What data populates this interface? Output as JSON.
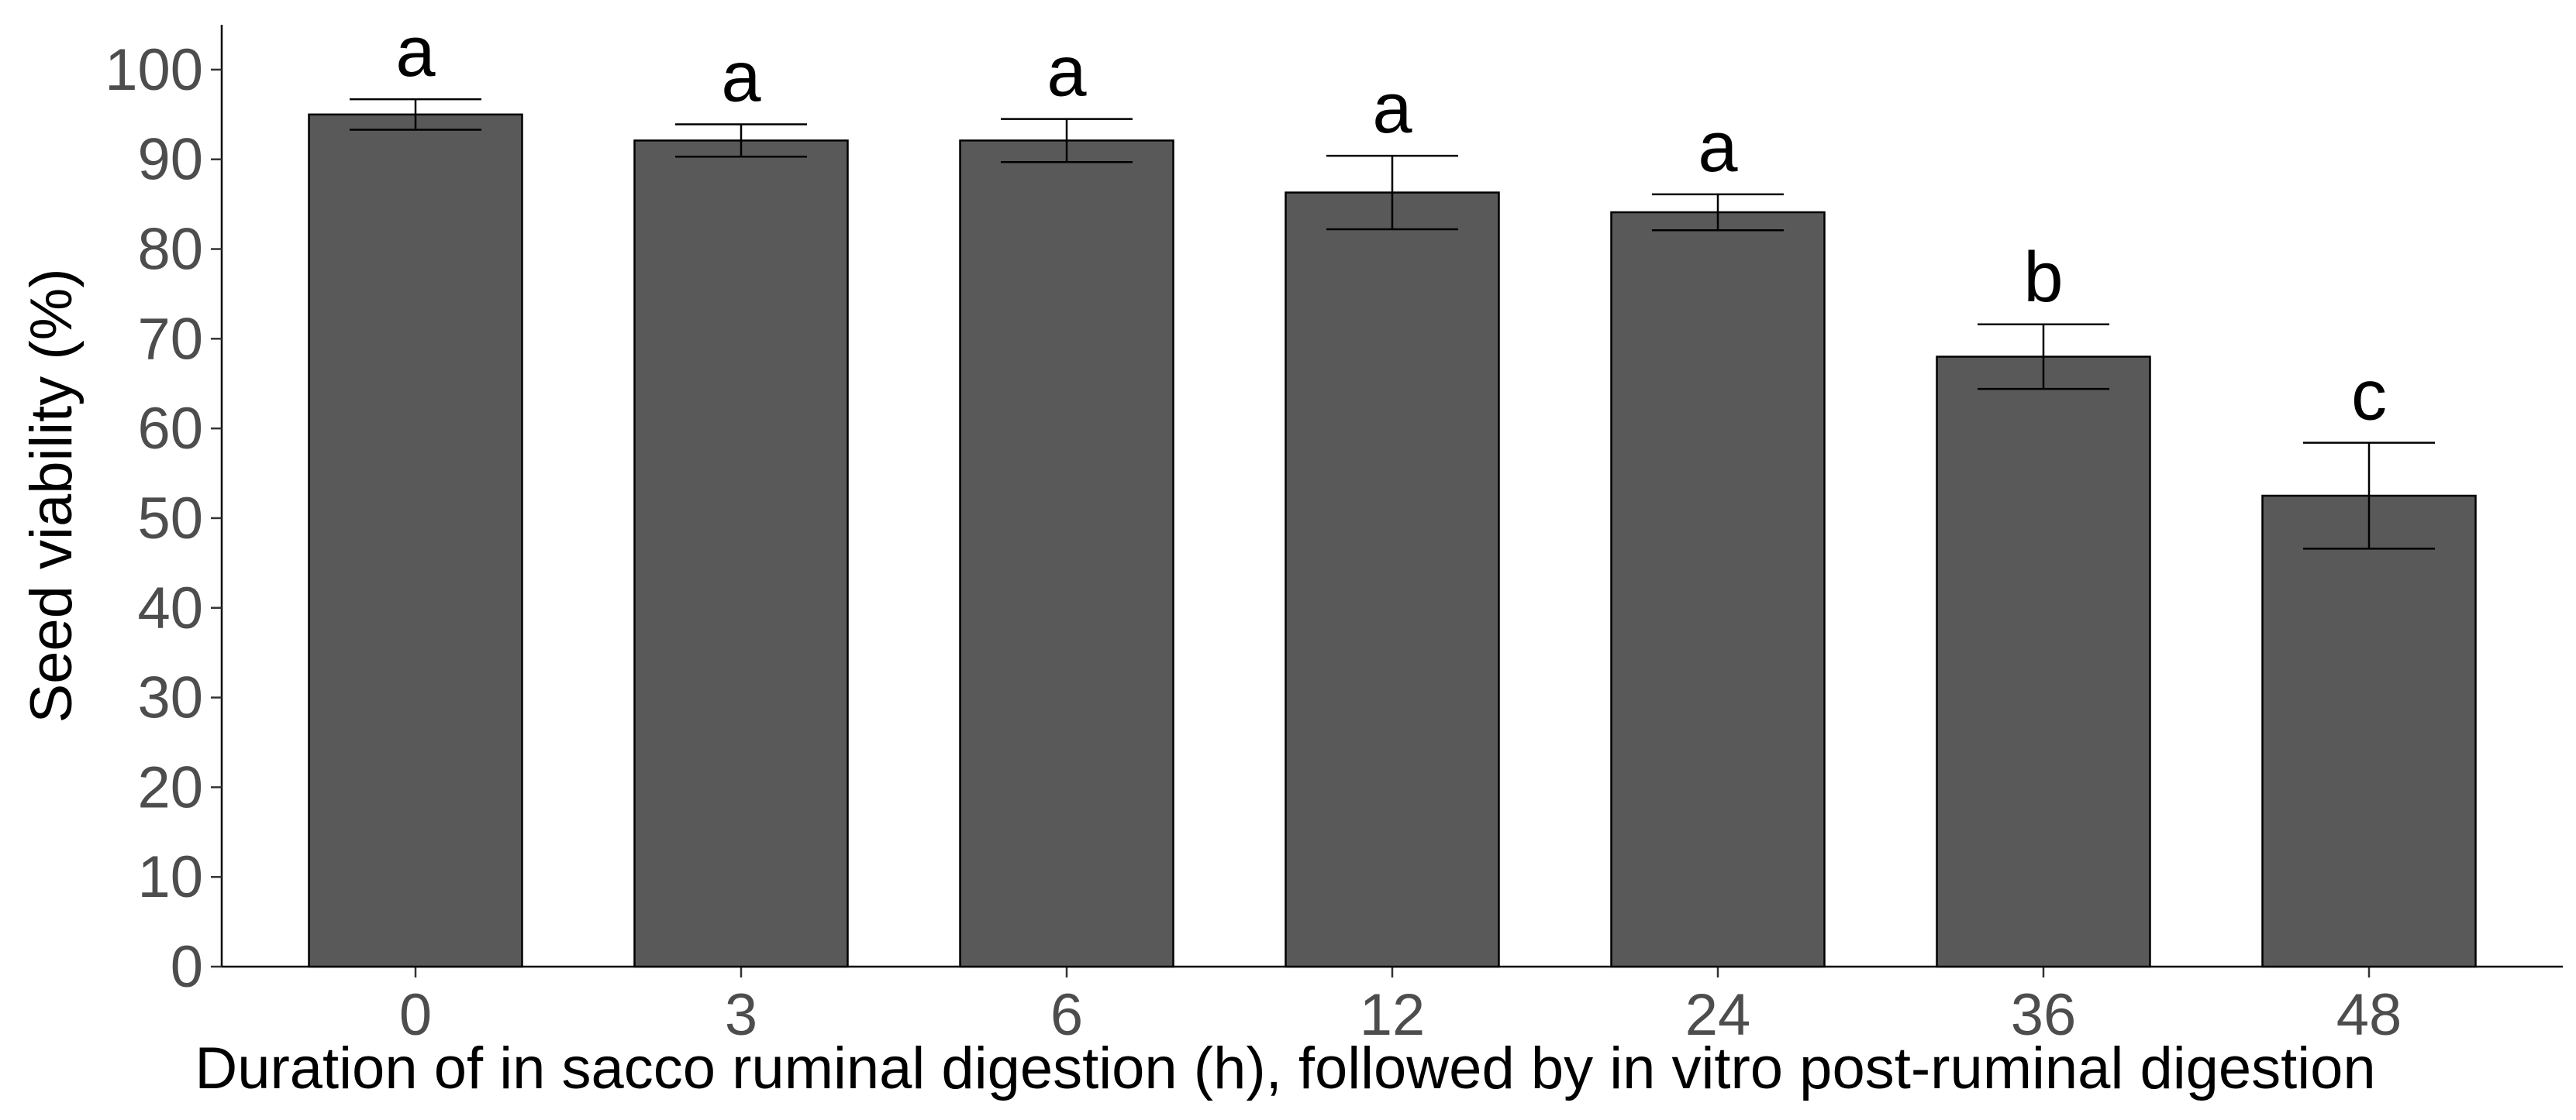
{
  "chart_data": {
    "type": "bar",
    "x_label": "Duration of in sacco ruminal digestion (h), followed by in vitro post-ruminal digestion",
    "y_label": "Seed viability (%)",
    "categories": [
      "0",
      "3",
      "6",
      "12",
      "24",
      "36",
      "48"
    ],
    "values": [
      95,
      92.1,
      92.1,
      86.3,
      84.1,
      68,
      52.5
    ],
    "errors": [
      1.7,
      1.8,
      2.4,
      4.1,
      2,
      3.6,
      5.9
    ],
    "letters": [
      "a",
      "a",
      "a",
      "a",
      "a",
      "b",
      "c"
    ],
    "color": "#595959",
    "ylim": [
      0,
      105
    ],
    "yticks": [
      0,
      10,
      20,
      30,
      40,
      50,
      60,
      70,
      80,
      90,
      100
    ],
    "grid": false
  }
}
